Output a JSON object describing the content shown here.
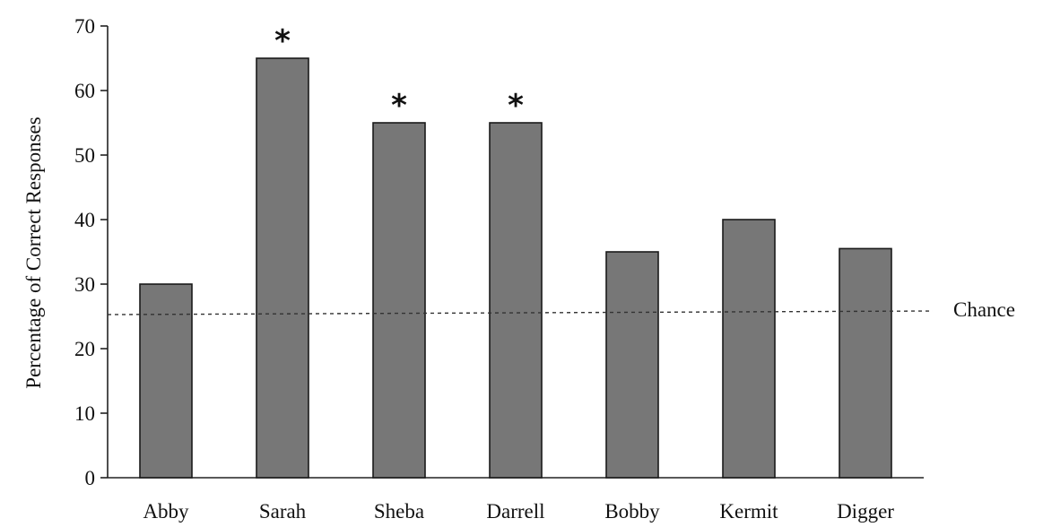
{
  "chart_data": {
    "type": "bar",
    "title": "",
    "xlabel": "",
    "ylabel": "Percentage of Correct Responses",
    "ylim": [
      0,
      70
    ],
    "yticks": [
      0,
      10,
      20,
      30,
      40,
      50,
      60,
      70
    ],
    "ytick_labels": [
      "0",
      "10",
      "20",
      "30",
      "40",
      "50",
      "60",
      "70"
    ],
    "categories": [
      "Abby",
      "Sarah",
      "Sheba",
      "Darrell",
      "Bobby",
      "Kermit",
      "Digger"
    ],
    "values": [
      30,
      65,
      55,
      55,
      35,
      40,
      35.5
    ],
    "significant": [
      false,
      true,
      true,
      true,
      false,
      false,
      false
    ],
    "significance_marker": "*",
    "reference_line": {
      "value": 25,
      "label": "Chance",
      "style": "dashed"
    },
    "bar_color": "#777777",
    "grid": false,
    "legend": "none"
  }
}
